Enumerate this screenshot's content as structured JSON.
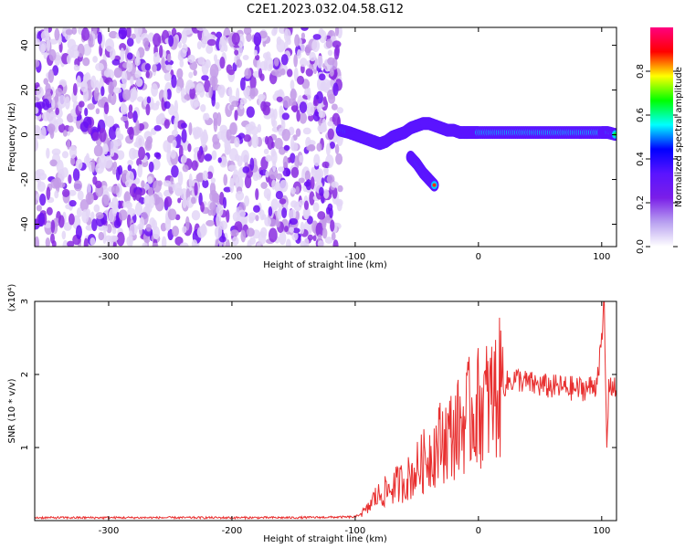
{
  "title": "C2E1.2023.032.04.58.G12",
  "colorbar": {
    "label": "Normalized spectral amplitude",
    "ticks": [
      0.0,
      0.2,
      0.4,
      0.6,
      0.8
    ],
    "tick_labels": [
      "0.0",
      "0.2",
      "0.4",
      "0.6",
      "0.8"
    ],
    "range": [
      0,
      1
    ],
    "stops": [
      "#ffffff",
      "#b8a0f0",
      "#7a1ee8",
      "#5a14ff",
      "#0000ff",
      "#00ffff",
      "#00ff00",
      "#ffff00",
      "#ff0000",
      "#ff0080"
    ]
  },
  "chart_data": [
    {
      "type": "heatmap",
      "title": "C2E1.2023.032.04.58.G12",
      "xlabel": "Height of straight line (km)",
      "ylabel": "Frequency (Hz)",
      "xlim": [
        -360,
        112
      ],
      "ylim": [
        -50,
        48
      ],
      "xticks": [
        -300,
        -200,
        -100,
        0,
        100
      ],
      "yticks": [
        -40,
        -20,
        0,
        20,
        40
      ],
      "noise_region_x": [
        -360,
        -112
      ],
      "signal_track": {
        "x": [
          -112,
          -105,
          -100,
          -95,
          -90,
          -85,
          -80,
          -75,
          -70,
          -65,
          -60,
          -55,
          -50,
          -45,
          -40,
          -35,
          -30,
          -25,
          -20,
          -15,
          -10,
          -5,
          0,
          10,
          20,
          30,
          40,
          50,
          60,
          70,
          80,
          90,
          100,
          105,
          112
        ],
        "y": [
          2,
          1,
          0,
          -1,
          -2,
          -3,
          -4,
          -3,
          -1,
          0,
          1,
          3,
          4,
          5,
          5,
          4,
          3,
          2,
          2,
          1,
          1,
          1,
          1,
          1,
          1,
          1,
          1,
          1,
          1,
          1,
          1,
          1,
          1,
          1,
          0
        ]
      },
      "branch_track": {
        "x": [
          -55,
          -50,
          -45,
          -40,
          -35
        ],
        "y": [
          -10,
          -13,
          -17,
          -20,
          -23
        ]
      }
    },
    {
      "type": "line",
      "xlabel": "Height of straight line (km)",
      "ylabel": "SNR (10 * v/v)",
      "scale_label": "(x10⁴)",
      "xlim": [
        -360,
        112
      ],
      "ylim": [
        0,
        3
      ],
      "xticks": [
        -300,
        -200,
        -100,
        0,
        100
      ],
      "yticks": [
        1,
        2,
        3
      ],
      "series": [
        {
          "color": "#e83030",
          "x": [
            -360,
            -300,
            -200,
            -150,
            -100,
            -90,
            -85,
            -80,
            -75,
            -70,
            -65,
            -60,
            -55,
            -50,
            -45,
            -40,
            -35,
            -30,
            -25,
            -20,
            -15,
            -10,
            -5,
            0,
            5,
            10,
            15,
            20,
            25,
            30,
            40,
            50,
            60,
            70,
            80,
            90,
            95,
            100,
            102,
            104,
            106,
            112
          ],
          "y": [
            0.04,
            0.04,
            0.04,
            0.04,
            0.05,
            0.15,
            0.3,
            0.35,
            0.4,
            0.45,
            0.5,
            0.55,
            0.6,
            0.7,
            0.8,
            0.9,
            1.0,
            1.1,
            1.15,
            1.2,
            1.3,
            1.4,
            1.5,
            1.55,
            1.6,
            1.65,
            1.75,
            1.85,
            1.9,
            1.95,
            1.88,
            1.85,
            1.83,
            1.82,
            1.8,
            1.82,
            1.85,
            2.4,
            3.0,
            1.0,
            1.9,
            1.75
          ]
        }
      ]
    }
  ]
}
